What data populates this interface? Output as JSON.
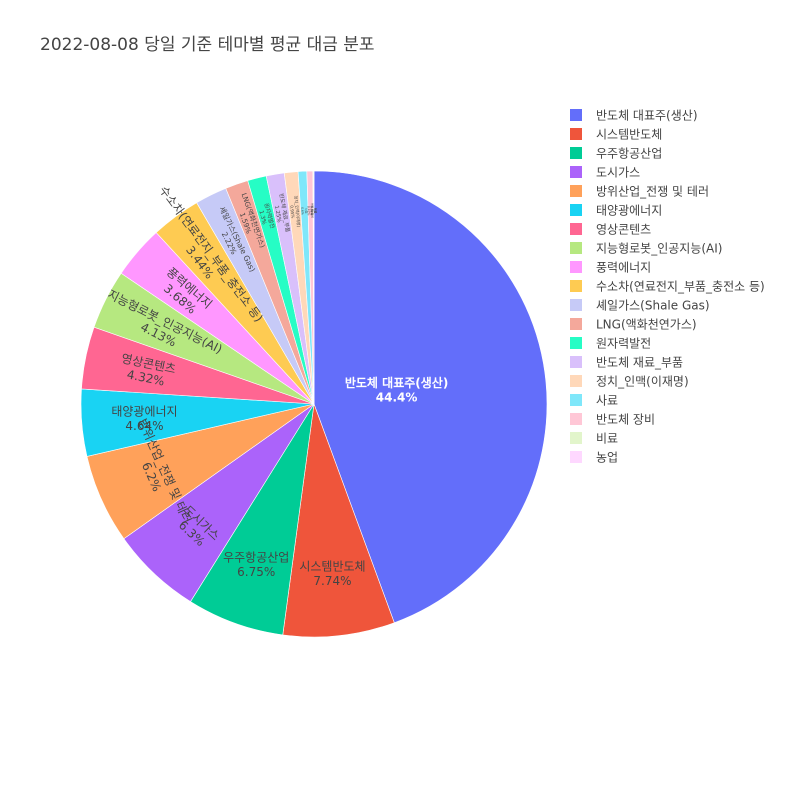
{
  "chart_data": {
    "type": "pie",
    "title": "2022-08-08 당일 기준 테마별 평균 대금 분포",
    "direction": "clockwise",
    "start_angle": "top",
    "legend_position": "right",
    "slices": [
      {
        "label": "반도체 대표주(생산)",
        "value": 44.4,
        "text": "44.4%",
        "color": "#636efa"
      },
      {
        "label": "시스템반도체",
        "value": 7.74,
        "text": "7.74%",
        "color": "#ef553b"
      },
      {
        "label": "우주항공산업",
        "value": 6.75,
        "text": "6.75%",
        "color": "#00cc96"
      },
      {
        "label": "도시가스",
        "value": 6.3,
        "text": "6.3%",
        "color": "#ab63fa"
      },
      {
        "label": "방위산업_전쟁 및 테러",
        "value": 6.2,
        "text": "6.2%",
        "color": "#ffa15a"
      },
      {
        "label": "태양광에너지",
        "value": 4.64,
        "text": "4.64%",
        "color": "#19d3f3"
      },
      {
        "label": "영상콘텐츠",
        "value": 4.32,
        "text": "4.32%",
        "color": "#ff6692"
      },
      {
        "label": "지능형로봇_인공지능(AI)",
        "value": 4.13,
        "text": "4.13%",
        "color": "#b6e880"
      },
      {
        "label": "풍력에너지",
        "value": 3.68,
        "text": "3.68%",
        "color": "#ff97ff"
      },
      {
        "label": "수소차(연료전지_부품_충전소 등)",
        "value": 3.44,
        "text": "3.44%",
        "color": "#fecb52"
      },
      {
        "label": "셰일가스(Shale Gas)",
        "value": 2.22,
        "text": "2.22%",
        "color": "#c6caf7"
      },
      {
        "label": "LNG(액화천연가스)",
        "value": 1.59,
        "text": "1.59%",
        "color": "#f4a89b"
      },
      {
        "label": "원자력발전",
        "value": 1.3,
        "text": "1.3%",
        "color": "#26fdc5"
      },
      {
        "label": "반도체 재료_부품",
        "value": 1.25,
        "text": "1.25%",
        "color": "#d9c0fb"
      },
      {
        "label": "정치_인맥(이재명)",
        "value": 0.95,
        "text": "0.95%",
        "color": "#ffd8b9"
      },
      {
        "label": "사료",
        "value": 0.6,
        "text": "0.6%",
        "color": "#7fe7fa"
      },
      {
        "label": "반도체 장비",
        "value": 0.42,
        "text": "0.42%",
        "color": "#ffc7d6"
      },
      {
        "label": "비료",
        "value": 0.06,
        "text": "0.06%",
        "color": "#e2f5cb"
      },
      {
        "label": "농업",
        "value": 0.01,
        "text": "0.01%",
        "color": "#fed8ff"
      }
    ]
  }
}
